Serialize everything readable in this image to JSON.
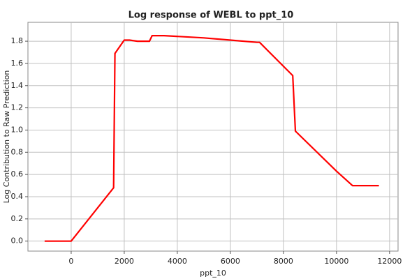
{
  "chart_data": {
    "type": "line",
    "title": "Log response of WEBL to ppt_10",
    "x_label": "ppt_10",
    "y_label": "Log Contribution to Raw Prediction",
    "x": [
      -1000,
      0,
      1600,
      1650,
      2000,
      2200,
      2500,
      2950,
      3050,
      3500,
      5000,
      6000,
      7000,
      7100,
      8350,
      8450,
      10000,
      10600,
      11600
    ],
    "series": [
      {
        "color": "#ff0000",
        "values": [
          0,
          0,
          0.48,
          1.69,
          1.81,
          1.81,
          1.8,
          1.8,
          1.85,
          1.85,
          1.83,
          1.81,
          1.79,
          1.79,
          1.49,
          0.99,
          0.63,
          0.5,
          0.5
        ]
      }
    ],
    "xlim": [
      -1630,
      12320
    ],
    "ylim": [
      -0.09,
      1.97
    ],
    "xticks": [
      0,
      2000,
      4000,
      6000,
      8000,
      10000,
      12000
    ],
    "yticks": [
      {
        "value": 0,
        "label": "0.0"
      },
      0.2,
      0.4,
      0.6,
      0.8,
      {
        "value": 1,
        "label": "1.0"
      },
      1.2,
      1.4,
      1.6,
      1.8
    ],
    "grid": true
  }
}
